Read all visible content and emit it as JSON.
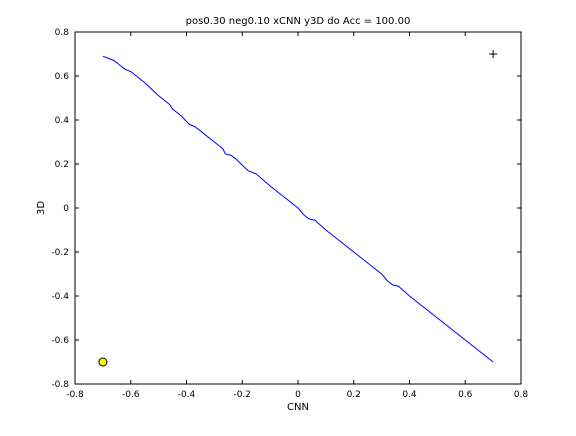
{
  "chart_data": {
    "type": "line",
    "title": "pos0.30 neg0.10 xCNN y3D do Acc = 100.00",
    "xlabel": "CNN",
    "ylabel": "3D",
    "xlim": [
      -0.8,
      0.8
    ],
    "ylim": [
      -0.8,
      0.8
    ],
    "xticks": [
      -0.8,
      -0.6,
      -0.4,
      -0.2,
      0,
      0.2,
      0.4,
      0.6,
      0.8
    ],
    "yticks": [
      -0.8,
      -0.6,
      -0.4,
      -0.2,
      0,
      0.2,
      0.4,
      0.6,
      0.8
    ],
    "xtick_labels": [
      "-0.8",
      "-0.6",
      "-0.4",
      "-0.2",
      "0",
      "0.2",
      "0.4",
      "0.6",
      "0.8"
    ],
    "ytick_labels": [
      "-0.8",
      "-0.6",
      "-0.4",
      "-0.2",
      "0",
      "0.2",
      "0.4",
      "0.6",
      "0.8"
    ],
    "grid": false,
    "series": [
      {
        "style": "line",
        "color": "#0000ff",
        "x": [
          -0.7,
          -0.68,
          -0.66,
          -0.64,
          -0.62,
          -0.6,
          -0.58,
          -0.55,
          -0.5,
          -0.46,
          -0.45,
          -0.42,
          -0.39,
          -0.37,
          -0.34,
          -0.3,
          -0.27,
          -0.26,
          -0.24,
          -0.22,
          -0.2,
          -0.18,
          -0.15,
          -0.1,
          -0.05,
          0.0,
          0.02,
          0.04,
          0.06,
          0.1,
          0.15,
          0.2,
          0.25,
          0.3,
          0.32,
          0.34,
          0.36,
          0.4,
          0.45,
          0.5,
          0.55,
          0.6,
          0.65,
          0.7
        ],
        "y": [
          0.69,
          0.68,
          0.67,
          0.65,
          0.63,
          0.62,
          0.6,
          0.57,
          0.51,
          0.47,
          0.45,
          0.42,
          0.38,
          0.37,
          0.34,
          0.3,
          0.27,
          0.245,
          0.24,
          0.22,
          0.195,
          0.17,
          0.155,
          0.1,
          0.05,
          0.0,
          -0.03,
          -0.05,
          -0.055,
          -0.1,
          -0.15,
          -0.2,
          -0.25,
          -0.3,
          -0.33,
          -0.35,
          -0.355,
          -0.4,
          -0.45,
          -0.5,
          -0.55,
          -0.6,
          -0.65,
          -0.7
        ]
      },
      {
        "style": "marker",
        "marker": "plus",
        "color": "#000000",
        "x": [
          0.7
        ],
        "y": [
          0.7
        ]
      },
      {
        "style": "marker",
        "marker": "circle",
        "color": "#000000",
        "fill": "#ffff00",
        "x": [
          -0.7
        ],
        "y": [
          -0.7
        ]
      }
    ]
  }
}
